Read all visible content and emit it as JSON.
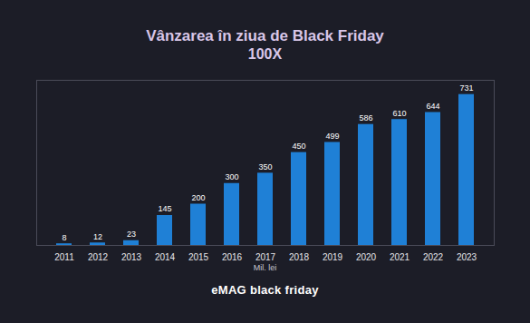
{
  "chart_data": {
    "type": "bar",
    "title": "Vânzarea în ziua de Black Friday",
    "subtitle": "100X",
    "categories": [
      "2011",
      "2012",
      "2013",
      "2014",
      "2015",
      "2016",
      "2017",
      "2018",
      "2019",
      "2020",
      "2021",
      "2022",
      "2023"
    ],
    "values": [
      8,
      12,
      23,
      145,
      200,
      300,
      350,
      450,
      499,
      586,
      610,
      644,
      731
    ],
    "color": "#1f80d6",
    "ylim": [
      0,
      800
    ],
    "yticks": [],
    "grid": false,
    "data_labels": true,
    "tick_labels": "x",
    "annotations": [
      "Mil. lei",
      "eMAG black friday"
    ]
  }
}
